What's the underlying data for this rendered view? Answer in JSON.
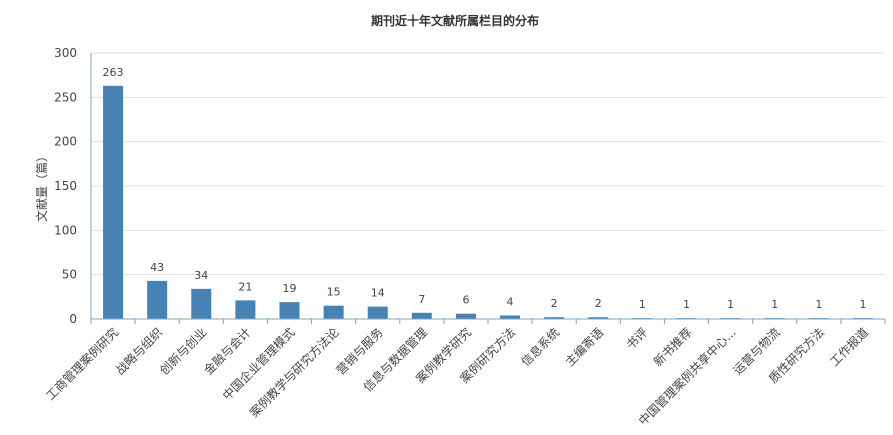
{
  "chart_data": {
    "type": "bar",
    "title": "期刊近十年文献所属栏目的分布",
    "xlabel": "",
    "ylabel": "文献量（篇）",
    "ylim": [
      0,
      300
    ],
    "yticks": [
      0,
      50,
      100,
      150,
      200,
      250,
      300
    ],
    "grid": true,
    "bar_color": "#4682b4",
    "axis_color": "#7aa7c7",
    "categories": [
      "工商管理案例研究",
      "战略与组织",
      "创新与创业",
      "金融与会计",
      "中国企业管理模式",
      "案例教学与研究方法论",
      "营销与服务",
      "信息与数据管理",
      "案例教学研究",
      "案例研究方法",
      "信息系统",
      "主编寄语",
      "书评",
      "新书推荐",
      "中国管理案例共享中心...",
      "运营与物流",
      "质性研究方法",
      "工作报道"
    ],
    "values": [
      263,
      43,
      34,
      21,
      19,
      15,
      14,
      7,
      6,
      4,
      2,
      2,
      1,
      1,
      1,
      1,
      1,
      1
    ]
  }
}
